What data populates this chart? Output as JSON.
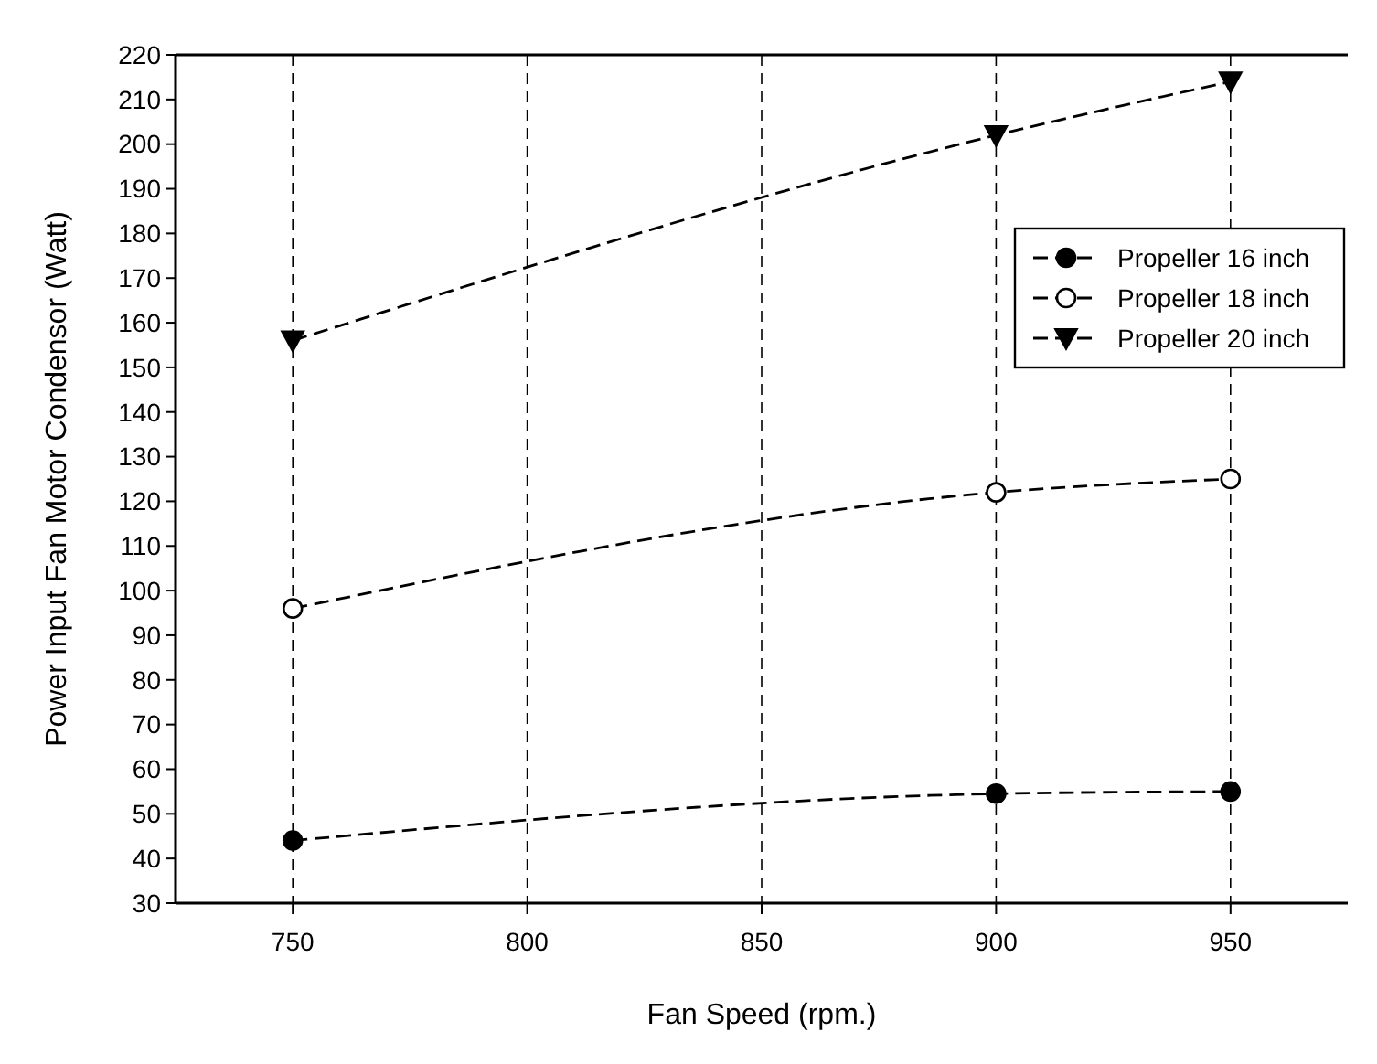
{
  "chart_data": {
    "type": "line",
    "xlabel": "Fan Speed (rpm.)",
    "ylabel": "Power Input Fan Motor Condensor (Watt)",
    "x": [
      750,
      900,
      950
    ],
    "series": [
      {
        "name": "Propeller 16 inch",
        "color": "#000000",
        "marker": "circle",
        "values": [
          44,
          54.5,
          55
        ]
      },
      {
        "name": "Propeller 18 inch",
        "color": "#000000",
        "marker": "circle",
        "values": [
          96,
          122,
          125
        ]
      },
      {
        "name": "Propeller 20 inch",
        "color": "#000000",
        "marker": "triangle",
        "values": [
          156,
          202,
          214
        ]
      }
    ],
    "xlim": [
      725,
      975
    ],
    "xticks": [
      750,
      800,
      850,
      900,
      950
    ],
    "ylim": [
      30,
      220
    ],
    "yticks": [
      30,
      40,
      50,
      60,
      70,
      80,
      90,
      100,
      110,
      120,
      130,
      140,
      150,
      160,
      170,
      180,
      190,
      200,
      210,
      220
    ],
    "grid": "x",
    "legend": "top right",
    "line_style": "dashed"
  }
}
